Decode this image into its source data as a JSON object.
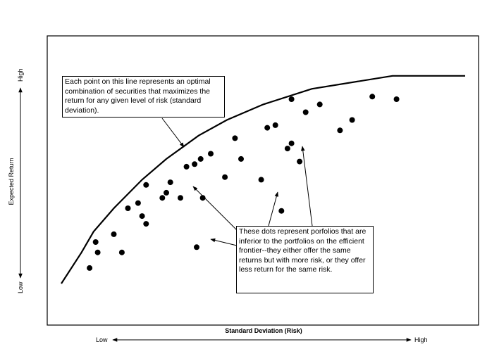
{
  "chart_data": {
    "type": "scatter",
    "title": "",
    "xlabel": "Standard Deviation (Risk)",
    "ylabel": "Expected Return",
    "x_axis_ends": {
      "low": "Low",
      "high": "High"
    },
    "y_axis_ends": {
      "low": "Low",
      "high": "High"
    },
    "grid": false,
    "frontier": {
      "x": [
        0,
        5,
        8,
        13,
        20,
        26,
        34,
        41,
        50,
        62,
        82,
        100
      ],
      "y": [
        0,
        12,
        20,
        29,
        40,
        48,
        57,
        63,
        69,
        75,
        80,
        80
      ]
    },
    "portfolios": {
      "x": [
        7,
        8.5,
        9,
        13,
        15,
        16.5,
        19,
        20,
        21,
        21,
        25,
        26,
        27,
        29.5,
        31,
        33,
        33.5,
        34.5,
        35,
        37,
        40.5,
        43,
        44.5,
        49.5,
        51,
        53,
        54.5,
        56,
        57,
        57,
        59,
        60.5,
        64,
        69,
        72,
        77,
        83
      ],
      "y": [
        6,
        16,
        12,
        19,
        12,
        29,
        31,
        26,
        23,
        38,
        33,
        35,
        39,
        33,
        45,
        46,
        14,
        48,
        33,
        50,
        41,
        56,
        48,
        40,
        60,
        61,
        28,
        52,
        71,
        54,
        47,
        66,
        69,
        59,
        63,
        72,
        71
      ]
    },
    "annotations": [
      "Each point on this line represents an optimal combination of securities that maximizes the return for any given level of risk (standard deviation).",
      "These dots represent porfolios that are inferior to the portfolios on the efficient frontier--they either offer the same returns but with more risk, or they offer less return for the same risk."
    ]
  },
  "annotation_top": "Each point on this line represents an optimal combination of securities that maximizes the return for any given level of risk (standard deviation).",
  "annotation_bottom": "These dots represent porfolios that are inferior to the portfolios on the efficient frontier--they either offer the same returns but with more risk, or they offer less return for the same risk."
}
